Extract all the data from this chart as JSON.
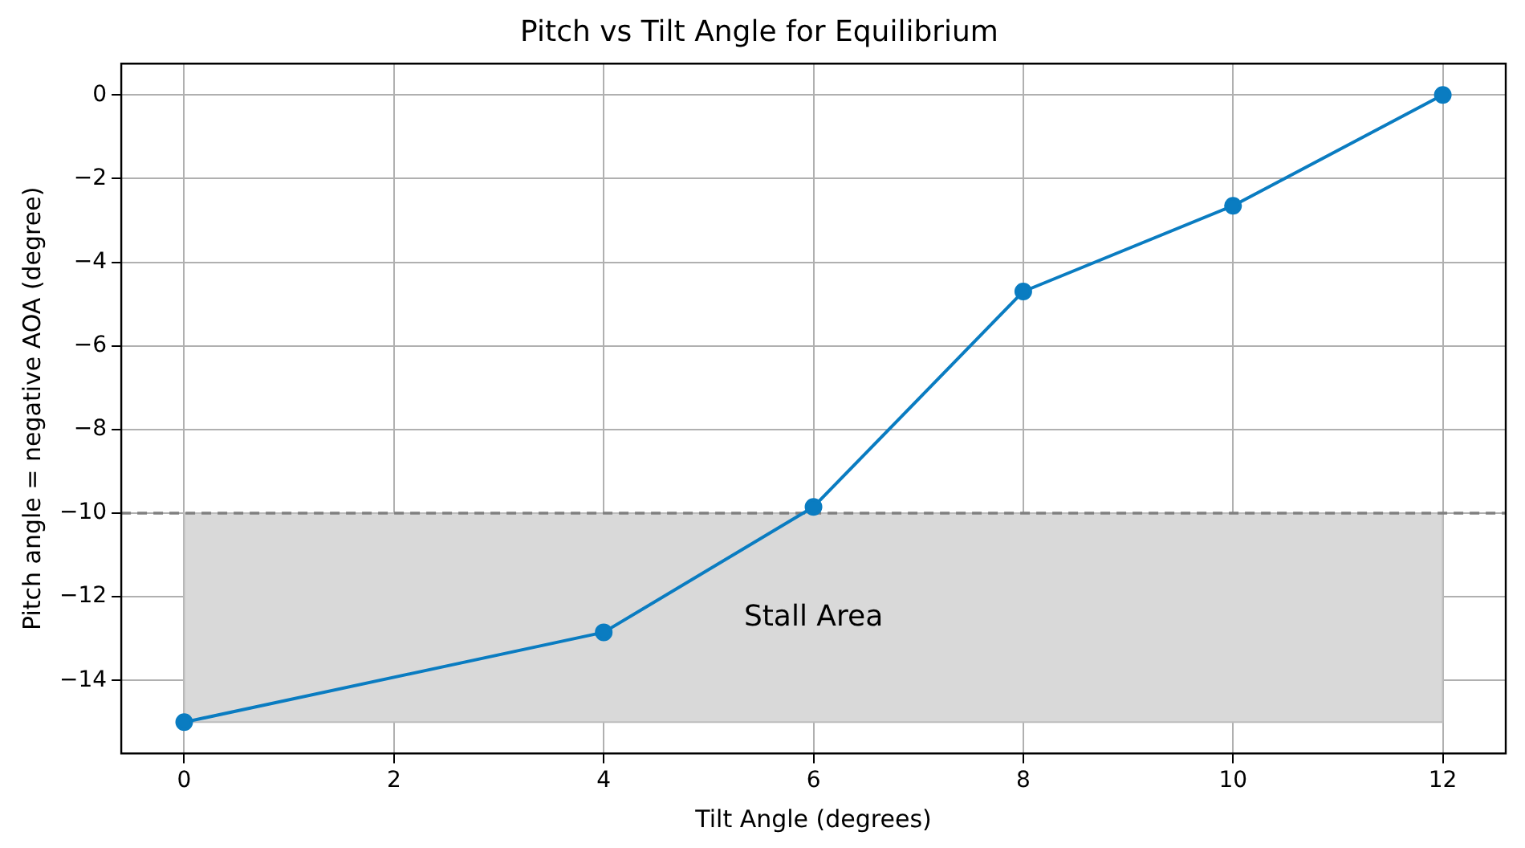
{
  "chart_data": {
    "type": "line",
    "title": "Pitch vs Tilt Angle for Equilibrium",
    "xlabel": "Tilt Angle (degrees)",
    "ylabel": "Pitch angle = negative AOA (degree)",
    "x": [
      0,
      4,
      6,
      8,
      10,
      12
    ],
    "series": [
      {
        "color": "#0a7cc1",
        "values": [
          -15,
          -12.85,
          -9.85,
          -4.7,
          -2.65,
          0
        ]
      }
    ],
    "xlim": [
      -0.6,
      12.6
    ],
    "xticks": [
      0,
      2,
      4,
      6,
      8,
      10,
      12
    ],
    "ylim": [
      -15.75,
      0.75
    ],
    "yticks": [
      -14,
      -12,
      -10,
      -8,
      -6,
      -4,
      -2,
      0
    ],
    "bands": [
      {
        "axis": "y",
        "from": -15,
        "to": -10,
        "color": "#d9d9d9",
        "label": "Stall Area"
      }
    ],
    "ref_lines": [
      {
        "axis": "y",
        "value": -10,
        "color": "#808080",
        "line_style": "dashed"
      }
    ],
    "grid": true,
    "legend": false,
    "marker": "circle",
    "line_style": "solid"
  }
}
